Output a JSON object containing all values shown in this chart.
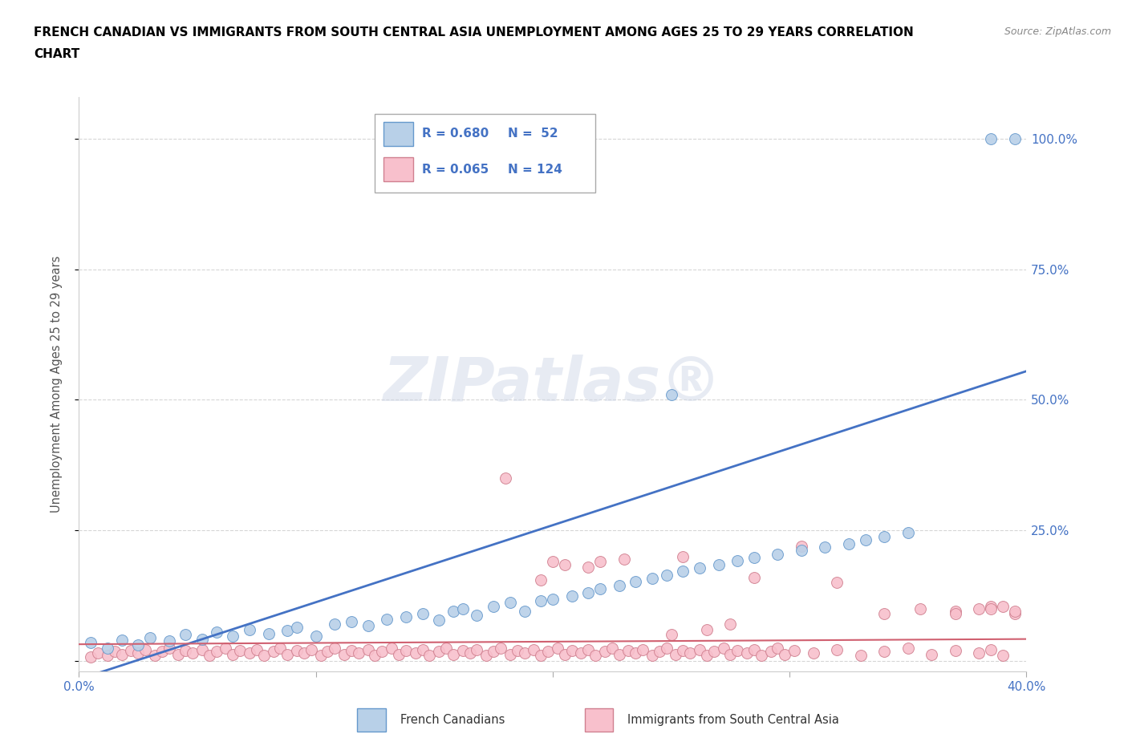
{
  "title_line1": "FRENCH CANADIAN VS IMMIGRANTS FROM SOUTH CENTRAL ASIA UNEMPLOYMENT AMONG AGES 25 TO 29 YEARS CORRELATION",
  "title_line2": "CHART",
  "source": "Source: ZipAtlas.com",
  "ylabel": "Unemployment Among Ages 25 to 29 years",
  "xlim": [
    0.0,
    0.4
  ],
  "ylim": [
    -0.02,
    1.08
  ],
  "plot_ylim": [
    -0.02,
    1.08
  ],
  "x_ticks": [
    0.0,
    0.1,
    0.2,
    0.3,
    0.4
  ],
  "x_tick_labels": [
    "0.0%",
    "",
    "",
    "",
    "40.0%"
  ],
  "y_ticks": [
    0.0,
    0.25,
    0.5,
    0.75,
    1.0
  ],
  "y_tick_labels": [
    "",
    "25.0%",
    "50.0%",
    "75.0%",
    "100.0%"
  ],
  "blue_fill_color": "#b8d0e8",
  "blue_edge_color": "#6699cc",
  "blue_line_color": "#4472c4",
  "pink_fill_color": "#f8c0cc",
  "pink_edge_color": "#d08090",
  "pink_line_color": "#d06070",
  "legend_blue_R": "R = 0.680",
  "legend_blue_N": "N =  52",
  "legend_pink_R": "R = 0.065",
  "legend_pink_N": "N = 124",
  "legend_text_color": "#4472c4",
  "watermark_text": "ZIPatlas®",
  "blue_line_x0": 0.0,
  "blue_line_y0": -0.035,
  "blue_line_x1": 0.4,
  "blue_line_y1": 0.555,
  "pink_line_x0": 0.0,
  "pink_line_y0": 0.032,
  "pink_line_x1": 0.4,
  "pink_line_y1": 0.042,
  "blue_x": [
    0.005,
    0.012,
    0.018,
    0.025,
    0.03,
    0.038,
    0.045,
    0.052,
    0.058,
    0.065,
    0.072,
    0.08,
    0.088,
    0.092,
    0.1,
    0.108,
    0.115,
    0.122,
    0.13,
    0.138,
    0.145,
    0.152,
    0.158,
    0.162,
    0.168,
    0.175,
    0.182,
    0.188,
    0.195,
    0.2,
    0.208,
    0.215,
    0.22,
    0.228,
    0.235,
    0.242,
    0.248,
    0.255,
    0.262,
    0.27,
    0.278,
    0.285,
    0.295,
    0.305,
    0.315,
    0.325,
    0.332,
    0.34,
    0.35,
    0.25,
    0.385,
    0.395
  ],
  "blue_y": [
    0.035,
    0.025,
    0.04,
    0.03,
    0.045,
    0.038,
    0.05,
    0.042,
    0.055,
    0.048,
    0.06,
    0.052,
    0.058,
    0.065,
    0.048,
    0.07,
    0.075,
    0.068,
    0.08,
    0.085,
    0.09,
    0.078,
    0.095,
    0.1,
    0.088,
    0.105,
    0.112,
    0.095,
    0.115,
    0.118,
    0.125,
    0.13,
    0.138,
    0.145,
    0.152,
    0.158,
    0.165,
    0.172,
    0.178,
    0.185,
    0.192,
    0.198,
    0.205,
    0.212,
    0.218,
    0.225,
    0.232,
    0.238,
    0.245,
    0.51,
    1.0,
    1.0
  ],
  "pink_x": [
    0.005,
    0.008,
    0.012,
    0.015,
    0.018,
    0.022,
    0.025,
    0.028,
    0.032,
    0.035,
    0.038,
    0.042,
    0.045,
    0.048,
    0.052,
    0.055,
    0.058,
    0.062,
    0.065,
    0.068,
    0.072,
    0.075,
    0.078,
    0.082,
    0.085,
    0.088,
    0.092,
    0.095,
    0.098,
    0.102,
    0.105,
    0.108,
    0.112,
    0.115,
    0.118,
    0.122,
    0.125,
    0.128,
    0.132,
    0.135,
    0.138,
    0.142,
    0.145,
    0.148,
    0.152,
    0.155,
    0.158,
    0.162,
    0.165,
    0.168,
    0.172,
    0.175,
    0.178,
    0.182,
    0.185,
    0.188,
    0.192,
    0.195,
    0.198,
    0.202,
    0.205,
    0.208,
    0.212,
    0.215,
    0.218,
    0.222,
    0.225,
    0.228,
    0.232,
    0.235,
    0.238,
    0.242,
    0.245,
    0.248,
    0.252,
    0.255,
    0.258,
    0.262,
    0.265,
    0.268,
    0.272,
    0.275,
    0.278,
    0.282,
    0.285,
    0.288,
    0.292,
    0.295,
    0.298,
    0.302,
    0.31,
    0.32,
    0.33,
    0.34,
    0.35,
    0.36,
    0.37,
    0.38,
    0.385,
    0.39,
    0.18,
    0.22,
    0.255,
    0.285,
    0.305,
    0.32,
    0.25,
    0.265,
    0.275,
    0.215,
    0.23,
    0.195,
    0.2,
    0.205,
    0.34,
    0.355,
    0.37,
    0.385,
    0.395,
    0.38,
    0.39,
    0.395,
    0.37,
    0.385
  ],
  "pink_y": [
    0.008,
    0.015,
    0.01,
    0.018,
    0.012,
    0.02,
    0.015,
    0.022,
    0.01,
    0.018,
    0.025,
    0.012,
    0.02,
    0.015,
    0.022,
    0.01,
    0.018,
    0.025,
    0.012,
    0.02,
    0.015,
    0.022,
    0.01,
    0.018,
    0.025,
    0.012,
    0.02,
    0.015,
    0.022,
    0.01,
    0.018,
    0.025,
    0.012,
    0.02,
    0.015,
    0.022,
    0.01,
    0.018,
    0.025,
    0.012,
    0.02,
    0.015,
    0.022,
    0.01,
    0.018,
    0.025,
    0.012,
    0.02,
    0.015,
    0.022,
    0.01,
    0.018,
    0.025,
    0.012,
    0.02,
    0.015,
    0.022,
    0.01,
    0.018,
    0.025,
    0.012,
    0.02,
    0.015,
    0.022,
    0.01,
    0.018,
    0.025,
    0.012,
    0.02,
    0.015,
    0.022,
    0.01,
    0.018,
    0.025,
    0.012,
    0.02,
    0.015,
    0.022,
    0.01,
    0.018,
    0.025,
    0.012,
    0.02,
    0.015,
    0.022,
    0.01,
    0.018,
    0.025,
    0.012,
    0.02,
    0.015,
    0.022,
    0.01,
    0.018,
    0.025,
    0.012,
    0.02,
    0.015,
    0.022,
    0.01,
    0.35,
    0.19,
    0.2,
    0.16,
    0.22,
    0.15,
    0.05,
    0.06,
    0.07,
    0.18,
    0.195,
    0.155,
    0.19,
    0.185,
    0.09,
    0.1,
    0.095,
    0.105,
    0.09,
    0.1,
    0.105,
    0.095,
    0.09,
    0.1
  ]
}
